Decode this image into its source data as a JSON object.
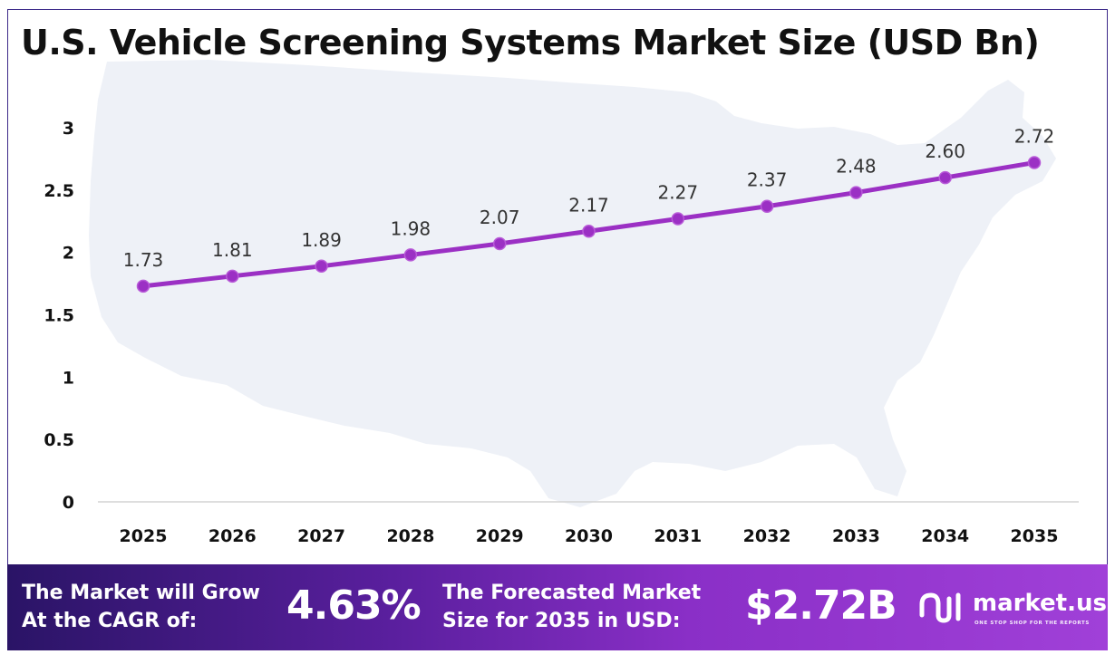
{
  "title": "U.S. Vehicle Screening Systems Market Size (USD Bn)",
  "chart_data": {
    "type": "line",
    "title": "U.S. Vehicle Screening Systems Market Size (USD Bn)",
    "categories": [
      "2025",
      "2026",
      "2027",
      "2028",
      "2029",
      "2030",
      "2031",
      "2032",
      "2033",
      "2034",
      "2035"
    ],
    "values": [
      1.73,
      1.81,
      1.89,
      1.98,
      2.07,
      2.17,
      2.27,
      2.37,
      2.48,
      2.6,
      2.72
    ],
    "data_labels": [
      "1.73",
      "1.81",
      "1.89",
      "1.98",
      "2.07",
      "2.17",
      "2.27",
      "2.37",
      "2.48",
      "2.60",
      "2.72"
    ],
    "ylim": [
      0,
      3
    ],
    "yticks": [
      "0",
      "0.5",
      "1",
      "1.5",
      "2",
      "2.5",
      "3"
    ],
    "ytick_values": [
      0,
      0.5,
      1,
      1.5,
      2,
      2.5,
      3
    ],
    "xlabel": "",
    "ylabel": "",
    "grid": false,
    "line_color": "#9b30c4"
  },
  "footer": {
    "cagr_label_line1": "The Market will Grow",
    "cagr_label_line2": "At the CAGR of:",
    "cagr_value": "4.63%",
    "forecast_label_line1": "The Forecasted Market",
    "forecast_label_line2": "Size for 2035 in USD:",
    "forecast_value": "$2.72B",
    "brand_name": "market.us",
    "brand_tagline": "ONE STOP SHOP FOR THE REPORTS"
  },
  "colors": {
    "background": "#ffffff",
    "map_silhouette": "#eef1f7",
    "footer_gradient_start": "#2a1466",
    "footer_gradient_end": "#a040d8",
    "border": "#3d2a8a"
  },
  "icons": {
    "brand_logo": "market-us-logo-icon",
    "map": "us-map-silhouette"
  }
}
